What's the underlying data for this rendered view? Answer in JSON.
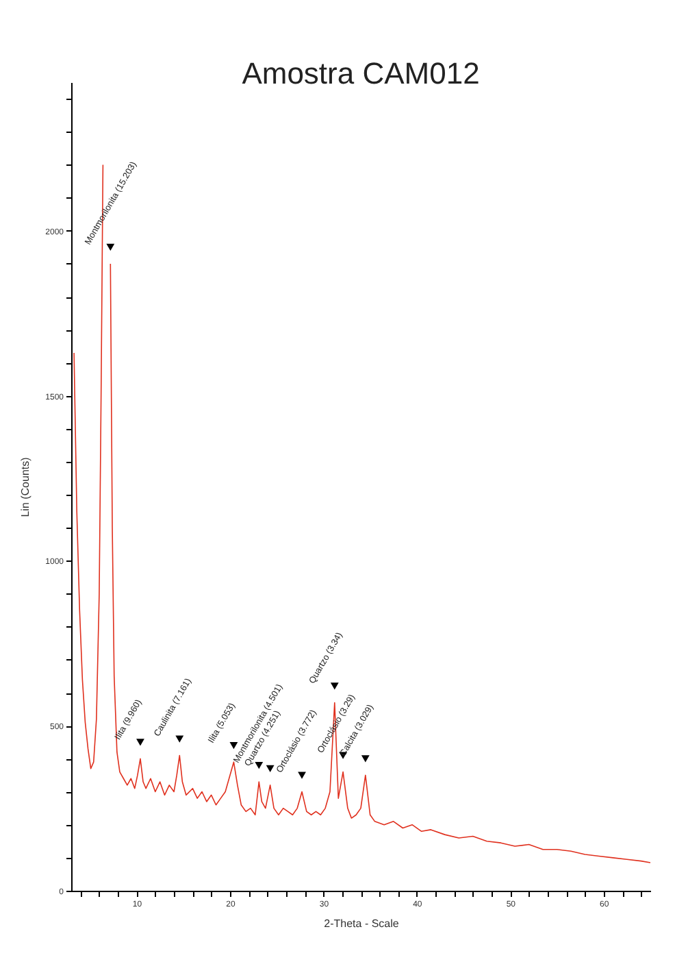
{
  "chart_data": {
    "type": "line",
    "title": "Amostra CAM012",
    "xlabel": "2-Theta - Scale",
    "ylabel": "Lin (Counts)",
    "x": [
      3.3,
      3.6,
      3.9,
      4.2,
      4.5,
      4.8,
      5.1,
      5.4,
      5.7,
      6.0,
      6.2,
      6.4,
      6.6,
      7.0,
      7.2,
      7.4,
      7.6,
      7.9,
      8.2,
      8.6,
      9.0,
      9.4,
      9.8,
      10.1,
      10.4,
      10.7,
      11.0,
      11.5,
      12.0,
      12.5,
      13.0,
      13.5,
      14.0,
      14.3,
      14.6,
      14.9,
      15.3,
      16.0,
      16.5,
      17.0,
      17.5,
      18.0,
      18.5,
      19.0,
      19.5,
      19.9,
      20.4,
      20.8,
      21.2,
      21.7,
      22.2,
      22.7,
      23.1,
      23.4,
      23.8,
      24.3,
      24.7,
      25.2,
      25.7,
      26.2,
      26.7,
      27.2,
      27.7,
      28.2,
      28.7,
      29.2,
      29.7,
      30.2,
      30.7,
      31.2,
      31.6,
      32.1,
      32.6,
      33.0,
      33.5,
      34.0,
      34.5,
      35.0,
      35.5,
      36.5,
      37.5,
      38.5,
      39.5,
      40.5,
      41.5,
      43,
      44.5,
      46,
      47.5,
      49,
      50.5,
      52,
      53.5,
      55,
      56.5,
      58,
      59.5,
      61,
      62.5,
      64,
      65
    ],
    "series": [
      {
        "color": "#e0301e",
        "values": [
          1630,
          1150,
          850,
          640,
          510,
          430,
          370,
          390,
          520,
          900,
          1500,
          2200,
          null,
          null,
          1900,
          1100,
          650,
          420,
          360,
          340,
          320,
          340,
          310,
          350,
          400,
          330,
          310,
          340,
          300,
          330,
          290,
          320,
          300,
          350,
          410,
          330,
          290,
          310,
          280,
          300,
          270,
          290,
          260,
          280,
          300,
          340,
          390,
          320,
          260,
          240,
          250,
          230,
          330,
          270,
          250,
          320,
          250,
          230,
          250,
          240,
          230,
          250,
          300,
          240,
          230,
          240,
          230,
          250,
          300,
          570,
          280,
          360,
          250,
          220,
          230,
          250,
          350,
          230,
          210,
          200,
          210,
          190,
          200,
          180,
          185,
          170,
          160,
          165,
          150,
          145,
          135,
          140,
          125,
          125,
          120,
          110,
          105,
          100,
          95,
          90,
          85
        ]
      }
    ],
    "xlim": [
      3,
      65
    ],
    "ylim": [
      0,
      2450
    ],
    "xticks": [
      {
        "value": 4,
        "label": null
      },
      {
        "value": 6,
        "label": null
      },
      {
        "value": 8,
        "label": null
      },
      10,
      {
        "value": 12,
        "label": null
      },
      {
        "value": 14,
        "label": null
      },
      {
        "value": 16,
        "label": null
      },
      {
        "value": 18,
        "label": null
      },
      20,
      {
        "value": 22,
        "label": null
      },
      {
        "value": 24,
        "label": null
      },
      {
        "value": 26,
        "label": null
      },
      {
        "value": 28,
        "label": null
      },
      30,
      {
        "value": 32,
        "label": null
      },
      {
        "value": 34,
        "label": null
      },
      {
        "value": 36,
        "label": null
      },
      {
        "value": 38,
        "label": null
      },
      40,
      {
        "value": 42,
        "label": null
      },
      {
        "value": 44,
        "label": null
      },
      {
        "value": 46,
        "label": null
      },
      {
        "value": 48,
        "label": null
      },
      50,
      {
        "value": 52,
        "label": null
      },
      {
        "value": 54,
        "label": null
      },
      {
        "value": 56,
        "label": null
      },
      {
        "value": 58,
        "label": null
      },
      60,
      {
        "value": 62,
        "label": null
      },
      {
        "value": 64,
        "label": null
      }
    ],
    "yticks": [
      0,
      {
        "value": 100,
        "label": null
      },
      {
        "value": 200,
        "label": null
      },
      {
        "value": 300,
        "label": null
      },
      {
        "value": 400,
        "label": null
      },
      500,
      {
        "value": 600,
        "label": null
      },
      {
        "value": 700,
        "label": null
      },
      {
        "value": 800,
        "label": null
      },
      {
        "value": 900,
        "label": null
      },
      1000,
      {
        "value": 1100,
        "label": null
      },
      {
        "value": 1200,
        "label": null
      },
      {
        "value": 1300,
        "label": null
      },
      {
        "value": 1400,
        "label": null
      },
      1500,
      {
        "value": 1600,
        "label": null
      },
      {
        "value": 1700,
        "label": null
      },
      {
        "value": 1800,
        "label": null
      },
      {
        "value": 1900,
        "label": null
      },
      2000,
      {
        "value": 2100,
        "label": null
      },
      {
        "value": 2200,
        "label": null
      },
      {
        "value": 2300,
        "label": null
      },
      {
        "value": 2400,
        "label": null
      }
    ],
    "grid": false,
    "legend": false,
    "annotations": [
      {
        "text": "Montmorilonita (15.203)",
        "x": 7.2,
        "y": 1900
      },
      {
        "text": "Ilita (9.960)",
        "x": 10.4,
        "y": 400
      },
      {
        "text": "Caulinita (7.161)",
        "x": 14.6,
        "y": 410
      },
      {
        "text": "Ilita (5.053)",
        "x": 20.4,
        "y": 390
      },
      {
        "text": "Montmorilonita (4.501)",
        "x": 23.1,
        "y": 330
      },
      {
        "text": "Quartzo (4.251)",
        "x": 24.3,
        "y": 320
      },
      {
        "text": "Ortoclásio (3.772)",
        "x": 27.7,
        "y": 300
      },
      {
        "text": "Quartzo (3.34)",
        "x": 31.2,
        "y": 570
      },
      {
        "text": "Ortoclásio (3.29)",
        "x": 32.1,
        "y": 360
      },
      {
        "text": "Calcita (3.029)",
        "x": 34.5,
        "y": 350
      }
    ]
  }
}
